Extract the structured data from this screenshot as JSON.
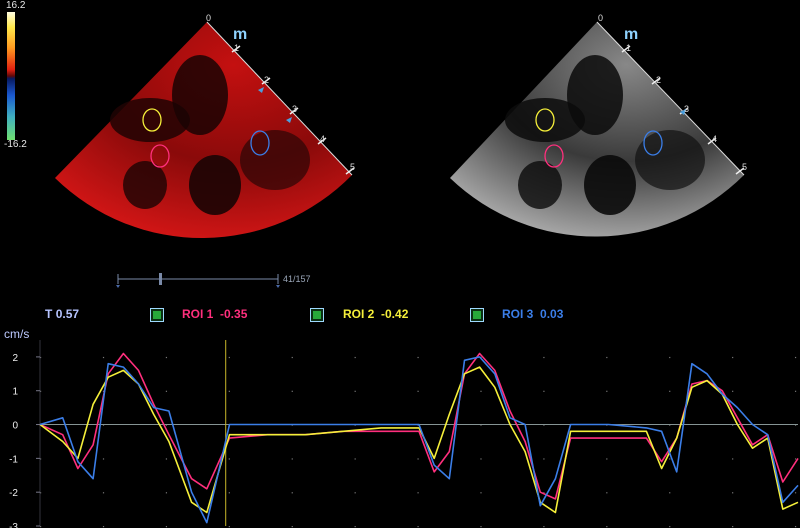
{
  "color_scale": {
    "max_label": "16.2",
    "min_label": "-16.2"
  },
  "sectors": {
    "left": {
      "orientation_mark": "m",
      "depth_labels": [
        "0",
        "1",
        "2",
        "3",
        "4",
        "5"
      ]
    },
    "right": {
      "orientation_mark": "m",
      "depth_labels": [
        "0",
        "1",
        "2",
        "3",
        "4",
        "5"
      ]
    }
  },
  "timeline": {
    "frame_counter": "41/157"
  },
  "legend": {
    "time": {
      "label": "T",
      "value": "0.57"
    },
    "rois": [
      {
        "label": "ROI 1",
        "value": "-0.35",
        "color": "#ff2f7d"
      },
      {
        "label": "ROI 2",
        "value": "-0.42",
        "color": "#f5ef3a"
      },
      {
        "label": "ROI 3",
        "value": "0.03",
        "color": "#3b7ee8"
      }
    ]
  },
  "chart_data": {
    "type": "line",
    "ylabel": "cm/s",
    "ylim": [
      -3,
      2.5
    ],
    "yticks": [
      "2",
      "1",
      "0",
      "-1",
      "-2",
      "-3"
    ],
    "cursor_x": 0.245,
    "series": [
      {
        "name": "ROI 1",
        "color": "#ff2f7d",
        "x": [
          0,
          0.03,
          0.05,
          0.07,
          0.09,
          0.11,
          0.13,
          0.15,
          0.17,
          0.2,
          0.22,
          0.25,
          0.3,
          0.35,
          0.4,
          0.45,
          0.5,
          0.52,
          0.54,
          0.56,
          0.58,
          0.6,
          0.62,
          0.64,
          0.66,
          0.68,
          0.7,
          0.75,
          0.8,
          0.82,
          0.84,
          0.86,
          0.88,
          0.9,
          0.92,
          0.94,
          0.96,
          0.98,
          1.0
        ],
        "y": [
          0,
          -0.3,
          -1.3,
          -0.6,
          1.5,
          2.1,
          1.6,
          0.6,
          -0.3,
          -1.6,
          -1.9,
          -0.4,
          -0.3,
          -0.3,
          -0.2,
          -0.2,
          -0.2,
          -1.4,
          -0.8,
          1.5,
          2.1,
          1.6,
          0.4,
          -0.5,
          -2.0,
          -2.2,
          -0.4,
          -0.4,
          -0.4,
          -1.1,
          -0.4,
          1.2,
          1.3,
          1.0,
          0.2,
          -0.6,
          -0.3,
          -1.7,
          -1.0
        ]
      },
      {
        "name": "ROI 2",
        "color": "#f5ef3a",
        "x": [
          0,
          0.03,
          0.05,
          0.07,
          0.09,
          0.11,
          0.13,
          0.15,
          0.17,
          0.2,
          0.22,
          0.25,
          0.3,
          0.35,
          0.4,
          0.45,
          0.5,
          0.52,
          0.54,
          0.56,
          0.58,
          0.6,
          0.62,
          0.64,
          0.66,
          0.68,
          0.7,
          0.75,
          0.8,
          0.82,
          0.84,
          0.86,
          0.88,
          0.9,
          0.92,
          0.94,
          0.96,
          0.98,
          1.0
        ],
        "y": [
          0,
          -0.5,
          -1.0,
          0.6,
          1.4,
          1.6,
          1.2,
          0.3,
          -0.5,
          -2.3,
          -2.6,
          -0.3,
          -0.3,
          -0.3,
          -0.2,
          -0.1,
          -0.1,
          -1.0,
          0.3,
          1.5,
          1.7,
          1.1,
          0.0,
          -0.8,
          -2.3,
          -2.6,
          -0.2,
          -0.2,
          -0.2,
          -1.3,
          -0.4,
          1.1,
          1.3,
          0.9,
          0.0,
          -0.7,
          -0.4,
          -2.5,
          -2.3
        ]
      },
      {
        "name": "ROI 3",
        "color": "#3b7ee8",
        "x": [
          0,
          0.03,
          0.05,
          0.07,
          0.09,
          0.11,
          0.13,
          0.15,
          0.17,
          0.2,
          0.22,
          0.25,
          0.3,
          0.35,
          0.4,
          0.45,
          0.5,
          0.52,
          0.54,
          0.56,
          0.58,
          0.6,
          0.62,
          0.64,
          0.66,
          0.68,
          0.7,
          0.75,
          0.8,
          0.82,
          0.84,
          0.86,
          0.88,
          0.9,
          0.92,
          0.94,
          0.96,
          0.98,
          1.0
        ],
        "y": [
          0,
          0.2,
          -1.1,
          -1.6,
          1.8,
          1.7,
          1.2,
          0.5,
          0.4,
          -2.0,
          -2.9,
          0.0,
          0.0,
          0.0,
          0.0,
          0.0,
          0.0,
          -1.2,
          -1.6,
          1.9,
          2.0,
          1.5,
          0.2,
          0.0,
          -2.4,
          -1.6,
          0.0,
          0.0,
          -0.1,
          -0.2,
          -1.4,
          1.8,
          1.5,
          0.9,
          0.5,
          0.0,
          -0.3,
          -2.3,
          -1.8
        ]
      }
    ]
  }
}
